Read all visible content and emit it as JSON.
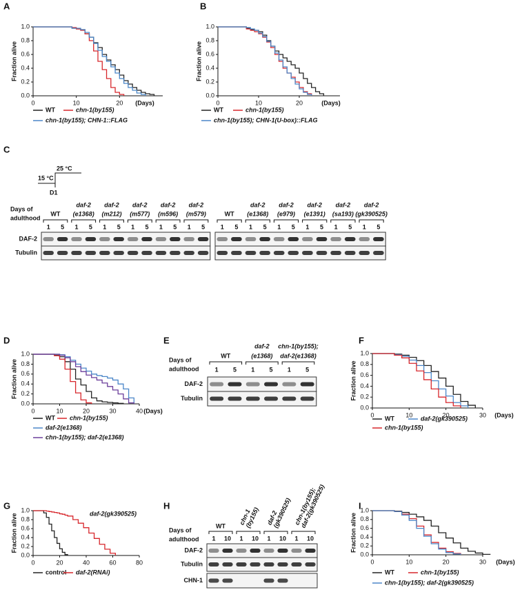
{
  "panel_labels": [
    "A",
    "B",
    "C",
    "D",
    "E",
    "F",
    "G",
    "H",
    "I"
  ],
  "chart_data": [
    {
      "type": "step",
      "ylabel": "Fraction alive",
      "xlabel": "(Days)",
      "xlim": [
        0,
        30
      ],
      "ylim": [
        0,
        1
      ],
      "xticks": [
        0,
        10,
        20
      ],
      "yticks": [
        {
          "value": 0,
          "label": "0.0"
        },
        0.2,
        0.4,
        0.6,
        0.8,
        {
          "value": 1,
          "label": "1.0"
        }
      ],
      "x": [
        0,
        9,
        10,
        11,
        12,
        13,
        14,
        15,
        16,
        17,
        18,
        19,
        20,
        21,
        22,
        23,
        24,
        25,
        26,
        27,
        28
      ],
      "series": [
        {
          "name": "WT",
          "color": "#222222",
          "values": [
            1,
            0.98,
            0.97,
            0.96,
            0.9,
            0.85,
            0.77,
            0.7,
            0.6,
            0.52,
            0.45,
            0.38,
            0.3,
            0.22,
            0.17,
            0.12,
            0.08,
            0.05,
            0.03,
            0.02,
            0
          ]
        },
        {
          "name": "chn-1(by155)",
          "color": "#d7262b",
          "values": [
            1,
            0.99,
            0.97,
            0.95,
            0.9,
            0.8,
            0.65,
            0.5,
            0.38,
            0.25,
            0.12,
            0.05,
            0.02,
            0,
            null,
            null,
            null,
            null,
            null,
            null,
            null
          ]
        },
        {
          "name": "chn-1(by155); CHN-1::FLAG",
          "color": "#4a86c8",
          "values": [
            1,
            0.98,
            0.98,
            0.96,
            0.92,
            0.85,
            0.76,
            0.66,
            0.57,
            0.5,
            0.42,
            0.33,
            0.25,
            0.18,
            0.12,
            0.08,
            0.04,
            0.02,
            0,
            null,
            null
          ]
        }
      ]
    },
    {
      "type": "step",
      "ylabel": "Fraction alive",
      "xlabel": "(Days)",
      "xlim": [
        0,
        30
      ],
      "ylim": [
        0,
        1
      ],
      "xticks": [
        0,
        10,
        20
      ],
      "yticks": [
        {
          "value": 0,
          "label": "0.0"
        },
        0.2,
        0.4,
        0.6,
        0.8,
        {
          "value": 1,
          "label": "1.0"
        }
      ],
      "x": [
        0,
        7,
        8,
        9,
        10,
        11,
        12,
        13,
        14,
        15,
        16,
        17,
        18,
        19,
        20,
        21,
        22,
        23,
        24,
        25,
        26
      ],
      "series": [
        {
          "name": "WT",
          "color": "#222222",
          "values": [
            1,
            0.98,
            0.96,
            0.95,
            0.93,
            0.88,
            0.8,
            0.72,
            0.65,
            0.6,
            0.55,
            0.5,
            0.45,
            0.4,
            0.33,
            0.25,
            0.18,
            0.12,
            0.06,
            0.03,
            0
          ]
        },
        {
          "name": "chn-1(by155)",
          "color": "#d7262b",
          "values": [
            1,
            0.97,
            0.95,
            0.93,
            0.9,
            0.85,
            0.78,
            0.7,
            0.6,
            0.5,
            0.4,
            0.33,
            0.27,
            0.2,
            0.12,
            0.06,
            0.03,
            0,
            null,
            null,
            null
          ]
        },
        {
          "name": "chn-1(by155); CHN-1(U-box)::FLAG",
          "color": "#4a86c8",
          "values": [
            1,
            0.99,
            0.97,
            0.95,
            0.91,
            0.86,
            0.79,
            0.72,
            0.62,
            0.52,
            0.42,
            0.33,
            0.25,
            0.17,
            0.1,
            0.05,
            0.02,
            0,
            null,
            null,
            null
          ]
        }
      ]
    },
    {
      "type": "step",
      "ylabel": "Fraction alive",
      "xlabel": "(Days)",
      "xlim": [
        0,
        40
      ],
      "ylim": [
        0,
        1
      ],
      "xticks": [
        0,
        10,
        20,
        30,
        40
      ],
      "yticks": [
        {
          "value": 0,
          "label": "0.0"
        },
        0.2,
        0.4,
        0.6,
        0.8,
        {
          "value": 1,
          "label": "1.0"
        }
      ],
      "x": [
        0,
        8,
        10,
        12,
        14,
        16,
        18,
        20,
        22,
        24,
        26,
        28,
        30,
        32,
        34,
        36,
        38
      ],
      "series": [
        {
          "name": "WT",
          "color": "#222222",
          "values": [
            1,
            0.98,
            0.95,
            0.85,
            0.7,
            0.5,
            0.38,
            0.25,
            0.12,
            0.06,
            0.04,
            0.03,
            0.02,
            0.01,
            0,
            null,
            null
          ]
        },
        {
          "name": "chn-1(by155)",
          "color": "#d7262b",
          "values": [
            1,
            0.97,
            0.9,
            0.7,
            0.45,
            0.22,
            0.08,
            0.02,
            0,
            null,
            null,
            null,
            null,
            null,
            null,
            null,
            null
          ]
        },
        {
          "name": "daf-2(e1368)",
          "color": "#4a86c8",
          "values": [
            1,
            1,
            0.99,
            0.95,
            0.88,
            0.8,
            0.72,
            0.66,
            0.6,
            0.57,
            0.55,
            0.52,
            0.48,
            0.4,
            0.3,
            0.12,
            0
          ]
        },
        {
          "name": "chn-1(by155); daf-2(e1368)",
          "color": "#6a3d9a",
          "values": [
            1,
            1,
            0.98,
            0.93,
            0.85,
            0.75,
            0.65,
            0.58,
            0.53,
            0.48,
            0.42,
            0.35,
            0.28,
            0.2,
            0.1,
            0.02,
            0
          ]
        }
      ]
    },
    {
      "type": "step",
      "ylabel": "Fraction alive",
      "xlabel": "(Days)",
      "xlim": [
        0,
        30
      ],
      "ylim": [
        0,
        1
      ],
      "xticks": [
        0,
        10,
        20,
        30
      ],
      "yticks": [
        {
          "value": 0,
          "label": "0.0"
        },
        0.2,
        0.4,
        0.6,
        0.8,
        {
          "value": 1,
          "label": "1.0"
        }
      ],
      "x": [
        0,
        6,
        8,
        10,
        12,
        14,
        16,
        18,
        20,
        22,
        24,
        26,
        28
      ],
      "series": [
        {
          "name": "WT",
          "color": "#222222",
          "values": [
            1,
            0.99,
            0.97,
            0.93,
            0.87,
            0.78,
            0.67,
            0.55,
            0.4,
            0.25,
            0.12,
            0.05,
            0
          ]
        },
        {
          "name": "daf-2(gk390525)",
          "color": "#4a86c8",
          "values": [
            1,
            0.98,
            0.95,
            0.88,
            0.78,
            0.65,
            0.5,
            0.35,
            0.22,
            0.1,
            0.04,
            0,
            null
          ]
        },
        {
          "name": "chn-1(by155)",
          "color": "#d7262b",
          "values": [
            1,
            0.97,
            0.92,
            0.82,
            0.68,
            0.52,
            0.35,
            0.2,
            0.1,
            0.04,
            0,
            null,
            null
          ]
        }
      ]
    },
    {
      "type": "step",
      "ylabel": "Fraction alive",
      "annotation": "daf-2(gk390525)",
      "xlim": [
        0,
        80
      ],
      "ylim": [
        0,
        1
      ],
      "xticks": [
        0,
        20,
        40,
        60,
        80
      ],
      "yticks": [
        {
          "value": 0,
          "label": "0.0"
        },
        0.2,
        0.4,
        0.6,
        0.8,
        {
          "value": 1,
          "label": "1.0"
        }
      ],
      "x": [
        0,
        8,
        10,
        12,
        14,
        16,
        18,
        20,
        22,
        24,
        26,
        30,
        34,
        38,
        42,
        46,
        50,
        54,
        58,
        62
      ],
      "series": [
        {
          "name": "control",
          "color": "#222222",
          "values": [
            1,
            0.95,
            0.85,
            0.7,
            0.55,
            0.4,
            0.27,
            0.15,
            0.07,
            0.02,
            0,
            null,
            null,
            null,
            null,
            null,
            null,
            null,
            null,
            null
          ]
        },
        {
          "name": "daf-2(RNAi)",
          "color": "#d7262b",
          "values": [
            1,
            1,
            0.99,
            0.98,
            0.97,
            0.96,
            0.95,
            0.93,
            0.92,
            0.9,
            0.88,
            0.8,
            0.72,
            0.62,
            0.5,
            0.38,
            0.25,
            0.14,
            0.05,
            0
          ]
        }
      ]
    },
    {
      "type": "step",
      "ylabel": "Fraction alive",
      "xlabel": "(Days)",
      "xlim": [
        0,
        30
      ],
      "ylim": [
        0,
        1
      ],
      "xticks": [
        0,
        10,
        20,
        30
      ],
      "yticks": [
        {
          "value": 0,
          "label": "0.0"
        },
        0.2,
        0.4,
        0.6,
        0.8,
        {
          "value": 1,
          "label": "1.0"
        }
      ],
      "x": [
        0,
        6,
        8,
        10,
        12,
        14,
        16,
        18,
        20,
        22,
        24,
        26,
        28,
        30,
        32
      ],
      "series": [
        {
          "name": "WT",
          "color": "#222222",
          "values": [
            1,
            0.99,
            0.96,
            0.92,
            0.86,
            0.78,
            0.65,
            0.5,
            0.38,
            0.27,
            0.15,
            0.08,
            0.04,
            0.01,
            0
          ]
        },
        {
          "name": "chn-1(by155)",
          "color": "#d7262b",
          "values": [
            1,
            0.98,
            0.92,
            0.82,
            0.65,
            0.45,
            0.28,
            0.15,
            0.07,
            0.03,
            0,
            null,
            null,
            null,
            null
          ]
        },
        {
          "name": "chn-1(by155); daf-2(gk390525)",
          "color": "#4a86c8",
          "values": [
            1,
            0.98,
            0.9,
            0.78,
            0.6,
            0.42,
            0.25,
            0.13,
            0.05,
            0.02,
            0,
            null,
            null,
            null,
            null
          ]
        }
      ]
    }
  ],
  "blots": [
    {
      "shift": {
        "low": "15 °C",
        "high": "25 °C",
        "day": "D1"
      },
      "days_label": [
        "Days of",
        "adulthood"
      ],
      "days": [
        "1",
        "5"
      ],
      "rows": [
        "DAF-2",
        "Tubulin"
      ],
      "panels": [
        {
          "strains": [
            [
              "WT"
            ],
            [
              "daf-2",
              "(e1368)"
            ],
            [
              "daf-2",
              "(m212)"
            ],
            [
              "daf-2",
              "(m577)"
            ],
            [
              "daf-2",
              "(m596)"
            ],
            [
              "daf-2",
              "(m579)"
            ]
          ]
        },
        {
          "strains": [
            [
              "WT"
            ],
            [
              "daf-2",
              "(e1368)"
            ],
            [
              "daf-2",
              "(e979)"
            ],
            [
              "daf-2",
              "(e1391)"
            ],
            [
              "daf-2",
              "(sa193)"
            ],
            [
              "daf-2",
              "(gk390525)"
            ]
          ]
        }
      ]
    },
    {
      "days_label": [
        "Days of",
        "adulthood"
      ],
      "days": [
        "1",
        "5"
      ],
      "rows": [
        "DAF-2",
        "Tubulin"
      ],
      "strains": [
        [
          "WT"
        ],
        [
          "daf-2",
          "(e1368)"
        ],
        [
          "chn-1(by155);",
          "daf-2(e1368)"
        ]
      ]
    },
    {
      "days_label": [
        "Days of",
        "adulthood"
      ],
      "days": [
        "1",
        "10"
      ],
      "rows": [
        "DAF-2",
        "Tubulin",
        "CHN-1"
      ],
      "strains": [
        [
          "WT"
        ],
        [
          "chn-1",
          "(by155)"
        ],
        [
          "daf-2",
          "(gk390525)"
        ],
        [
          "chn-1(by155);",
          "daf-2(gk390525)"
        ]
      ]
    }
  ]
}
